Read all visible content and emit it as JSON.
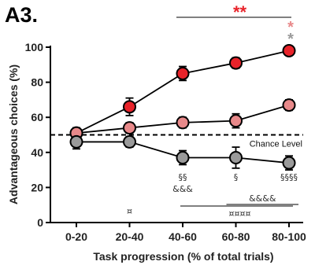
{
  "panel_label": "A3.",
  "chart_data": {
    "type": "line",
    "xlabel": "Task progression (% of total trials)",
    "ylabel": "Advantageous choices (%)",
    "categories": [
      "0-20",
      "20-40",
      "40-60",
      "60-80",
      "80-100"
    ],
    "ylim": [
      0,
      100
    ],
    "yticks": [
      0,
      20,
      40,
      60,
      80,
      100
    ],
    "grid": false,
    "series": [
      {
        "color": "#e8232a",
        "values": [
          51,
          66,
          85,
          91,
          98
        ],
        "errors": [
          3,
          5,
          4,
          3,
          2
        ]
      },
      {
        "color": "#e8898a",
        "values": [
          51,
          54,
          57,
          58,
          67
        ],
        "errors": [
          3,
          3,
          3,
          4,
          3
        ]
      },
      {
        "color": "#9a9a9a",
        "values": [
          46,
          46,
          37,
          37,
          34
        ],
        "errors": [
          4,
          3,
          4,
          6,
          4
        ]
      }
    ],
    "reference_line": {
      "y": 50,
      "label": "Chance Level",
      "style": "dashed"
    },
    "annotations": {
      "top_sig": {
        "text": "**",
        "color": "#e8232a",
        "from_category": 2,
        "to_category": 4
      },
      "right_markers": [
        {
          "text": "*",
          "color": "#e8898a"
        },
        {
          "text": "*",
          "color": "#9a9a9a"
        }
      ],
      "below_points": [
        {
          "category": 2,
          "lines": [
            "§§",
            "&&&"
          ]
        },
        {
          "category": 3,
          "lines": [
            "§"
          ]
        },
        {
          "category": 4,
          "lines": [
            "§§§§"
          ]
        }
      ],
      "bracket_amp": {
        "text": "&&&&",
        "from_category": 3,
        "to_category": 4
      },
      "bracket_currency": {
        "text": "¤¤¤¤",
        "from_category": 2,
        "to_category": 4
      },
      "single_currency": {
        "text": "¤",
        "category": 1
      }
    }
  }
}
